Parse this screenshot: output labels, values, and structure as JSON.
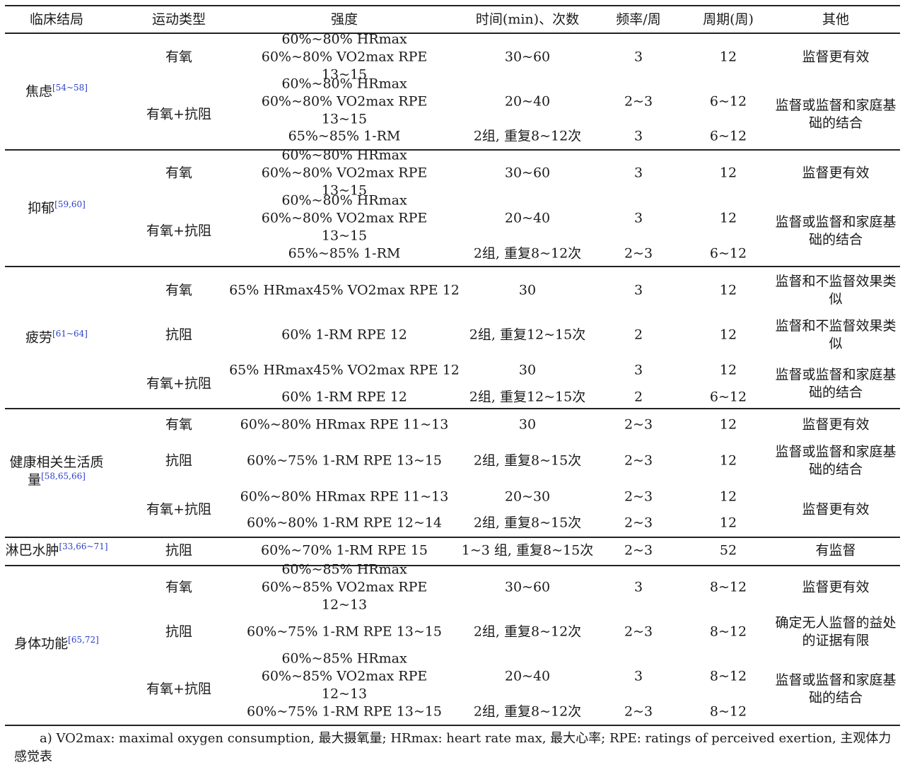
{
  "headers": [
    "临床结局",
    "运动类型",
    "强度",
    "时间(min)、次数",
    "频率/周",
    "周期(周)",
    "其他"
  ],
  "groups": [
    {
      "outcome": "焦虑",
      "ref": "[54~58]",
      "rows": [
        {
          "type": "有氧",
          "intensity": "60%~80% HRmax 60%~80% VO2max RPE 13~15",
          "time": "30~60",
          "freq": "3",
          "period": "12",
          "other": "监督更有效"
        },
        {
          "type": "有氧+抗阻",
          "intensity": "60%~80% HRmax 60%~80% VO2max RPE 13~15",
          "time": "20~40",
          "freq": "2~3",
          "period": "6~12",
          "other": "监督或监督和家庭基础的结合"
        },
        {
          "type": "",
          "intensity": "65%~85% 1-RM",
          "time": "2组, 重复8~12次",
          "freq": "3",
          "period": "6~12",
          "other": ""
        }
      ]
    },
    {
      "outcome": "抑郁",
      "ref": "[59,60]",
      "rows": [
        {
          "type": "有氧",
          "intensity": "60%~80% HRmax 60%~80% VO2max RPE 13~15",
          "time": "30~60",
          "freq": "3",
          "period": "12",
          "other": "监督更有效"
        },
        {
          "type": "有氧+抗阻",
          "intensity": "60%~80% HRmax 60%~80% VO2max RPE 13~15",
          "time": "20~40",
          "freq": "3",
          "period": "12",
          "other": "监督或监督和家庭基础的结合"
        },
        {
          "type": "",
          "intensity": "65%~85% 1-RM",
          "time": "2组, 重复8~12次",
          "freq": "2~3",
          "period": "6~12",
          "other": ""
        }
      ]
    },
    {
      "outcome": "疲劳",
      "ref": "[61~64]",
      "rows": [
        {
          "type": "有氧",
          "intensity": "65% HRmax45% VO2max RPE 12",
          "time": "30",
          "freq": "3",
          "period": "12",
          "other": "监督和不监督效果类似"
        },
        {
          "type": "抗阻",
          "intensity": "60% 1-RM RPE 12",
          "time": "2组, 重复12~15次",
          "freq": "2",
          "period": "12",
          "other": "监督和不监督效果类似"
        },
        {
          "type": "有氧+抗阻",
          "intensity": "65% HRmax45% VO2max RPE 12",
          "time": "30",
          "freq": "3",
          "period": "12",
          "other": "监督或监督和家庭基础的结合"
        },
        {
          "type": "",
          "intensity": "60% 1-RM RPE 12",
          "time": "2组, 重复12~15次",
          "freq": "2",
          "period": "6~12",
          "other": ""
        }
      ]
    },
    {
      "outcome": "健康相关生活质量",
      "ref": "[58,65,66]",
      "rows": [
        {
          "type": "有氧",
          "intensity": "60%~80% HRmax RPE 11~13",
          "time": "30",
          "freq": "2~3",
          "period": "12",
          "other": "监督更有效"
        },
        {
          "type": "抗阻",
          "intensity": "60%~75% 1-RM RPE 13~15",
          "time": "2组, 重复8~15次",
          "freq": "2~3",
          "period": "12",
          "other": "监督或监督和家庭基础的结合"
        },
        {
          "type": "有氧+抗阻",
          "intensity": "60%~80% HRmax RPE 11~13",
          "time": "20~30",
          "freq": "2~3",
          "period": "12",
          "other": "监督更有效"
        },
        {
          "type": "",
          "intensity": "60%~80% 1-RM RPE 12~14",
          "time": "2组, 重复8~15次",
          "freq": "2~3",
          "period": "12",
          "other": ""
        }
      ]
    },
    {
      "outcome": "淋巴水肿",
      "ref": "[33,66~71]",
      "rows": [
        {
          "type": "抗阻",
          "intensity": "60%~70% 1-RM RPE 15",
          "time": "1~3 组, 重复8~15次",
          "freq": "2~3",
          "period": "52",
          "other": "有监督"
        }
      ]
    },
    {
      "outcome": "身体功能",
      "ref": "[65,72]",
      "rows": [
        {
          "type": "有氧",
          "intensity": "60%~85% HRmax 60%~85% VO2max RPE 12~13",
          "time": "30~60",
          "freq": "3",
          "period": "8~12",
          "other": "监督更有效"
        },
        {
          "type": "抗阻",
          "intensity": "60%~75% 1-RM RPE 13~15",
          "time": "2组, 重复8~12次",
          "freq": "2~3",
          "period": "8~12",
          "other": "确定无人监督的益处的证据有限"
        },
        {
          "type": "有氧+抗阻",
          "intensity": "60%~85% HRmax 60%~85% VO2max RPE 12~13",
          "time": "20~40",
          "freq": "3",
          "period": "8~12",
          "other": "监督或监督和家庭基础的结合"
        },
        {
          "type": "",
          "intensity": "60%~75% 1-RM RPE 13~15",
          "time": "2组, 重复8~12次",
          "freq": "2~3",
          "period": "8~12",
          "other": ""
        }
      ]
    }
  ],
  "footnote": "a) VO2max: maximal oxygen consumption, 最大摄氧量; HRmax: heart rate max, 最大心率; RPE: ratings of perceived exertion, 主观体力感觉表"
}
